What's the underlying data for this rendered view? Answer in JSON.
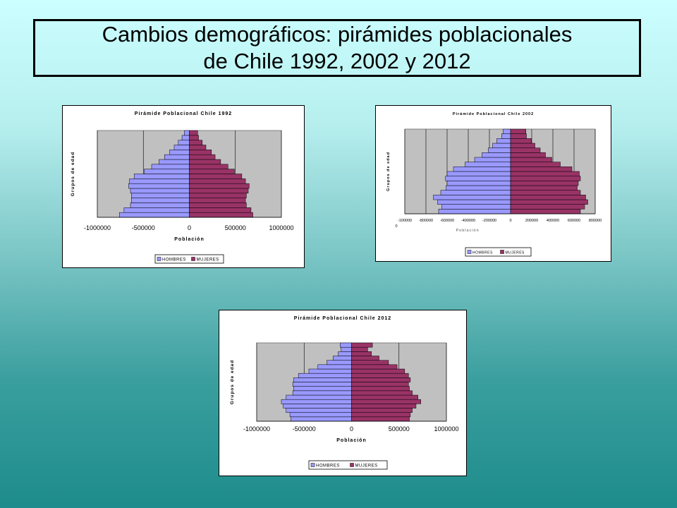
{
  "slide": {
    "title_line1": "Cambios demográficos: pirámides poblacionales",
    "title_line2": "de Chile 1992, 2002 y 2012"
  },
  "colors": {
    "hombres": "#9999ff",
    "mujeres": "#993366",
    "plot_bg": "#c0c0c0",
    "frame_bg": "#ffffff"
  },
  "chart_data": [
    {
      "type": "bar",
      "orientation": "horizontal",
      "title": "Pirámide Poblacional Chile 1992",
      "xlabel": "Población",
      "ylabel": "Grupos de edad",
      "xlim": [
        -1000000,
        1000000
      ],
      "x_ticks": [
        -1000000,
        -500000,
        0,
        500000,
        1000000
      ],
      "x_tick_labels": [
        "-1000000",
        "-500000",
        "0",
        "500000",
        "1000000"
      ],
      "grid": true,
      "legend": "bottom",
      "series": [
        {
          "name": "HOMBRES",
          "values": [
            -760000,
            -710000,
            -640000,
            -630000,
            -630000,
            -640000,
            -660000,
            -650000,
            -600000,
            -490000,
            -410000,
            -330000,
            -270000,
            -215000,
            -165000,
            -120000,
            -80000,
            -55000
          ]
        },
        {
          "name": "MUJERES",
          "values": [
            690000,
            670000,
            620000,
            610000,
            620000,
            640000,
            650000,
            610000,
            570000,
            490000,
            420000,
            340000,
            280000,
            240000,
            180000,
            140000,
            100000,
            90000
          ]
        }
      ]
    },
    {
      "type": "bar",
      "orientation": "horizontal",
      "title": "Pirámide Poblacional Chile 2002",
      "xlabel": "Población",
      "ylabel": "Grupos de edad",
      "xlim": [
        -1000000,
        800000
      ],
      "x_ticks": [
        -1000000,
        -800000,
        -600000,
        -400000,
        -200000,
        0,
        200000,
        400000,
        600000,
        800000
      ],
      "x_tick_labels": [
        "-100000 0",
        "-800000",
        "-600000",
        "-400000",
        "-200000",
        "0",
        "200000",
        "400000",
        "600000",
        "800000"
      ],
      "grid": true,
      "legend": "bottom",
      "series": [
        {
          "name": "HOMBRES",
          "values": [
            -680000,
            -650000,
            -690000,
            -730000,
            -660000,
            -610000,
            -600000,
            -615000,
            -600000,
            -540000,
            -430000,
            -340000,
            -270000,
            -210000,
            -170000,
            -130000,
            -85000,
            -70000
          ]
        },
        {
          "name": "MUJERES",
          "values": [
            660000,
            700000,
            730000,
            710000,
            660000,
            630000,
            640000,
            660000,
            650000,
            580000,
            470000,
            390000,
            330000,
            280000,
            230000,
            195000,
            150000,
            145000
          ]
        }
      ]
    },
    {
      "type": "bar",
      "orientation": "horizontal",
      "title": "Pirámide Poblacional Chile 2012",
      "xlabel": "Población",
      "ylabel": "Grupos de edad",
      "xlim": [
        -1000000,
        1000000
      ],
      "x_ticks": [
        -1000000,
        -500000,
        0,
        500000,
        1000000
      ],
      "x_tick_labels": [
        "-1000000",
        "-500000",
        "0",
        "500000",
        "1000000"
      ],
      "grid": true,
      "legend": "bottom",
      "series": [
        {
          "name": "HOMBRES",
          "values": [
            -640000,
            -650000,
            -690000,
            -720000,
            -740000,
            -690000,
            -620000,
            -610000,
            -620000,
            -610000,
            -560000,
            -450000,
            -355000,
            -260000,
            -195000,
            -140000,
            -110000,
            -120000
          ]
        },
        {
          "name": "MUJERES",
          "values": [
            610000,
            620000,
            640000,
            680000,
            730000,
            700000,
            640000,
            610000,
            600000,
            620000,
            600000,
            560000,
            480000,
            390000,
            290000,
            210000,
            170000,
            220000
          ]
        }
      ]
    }
  ]
}
